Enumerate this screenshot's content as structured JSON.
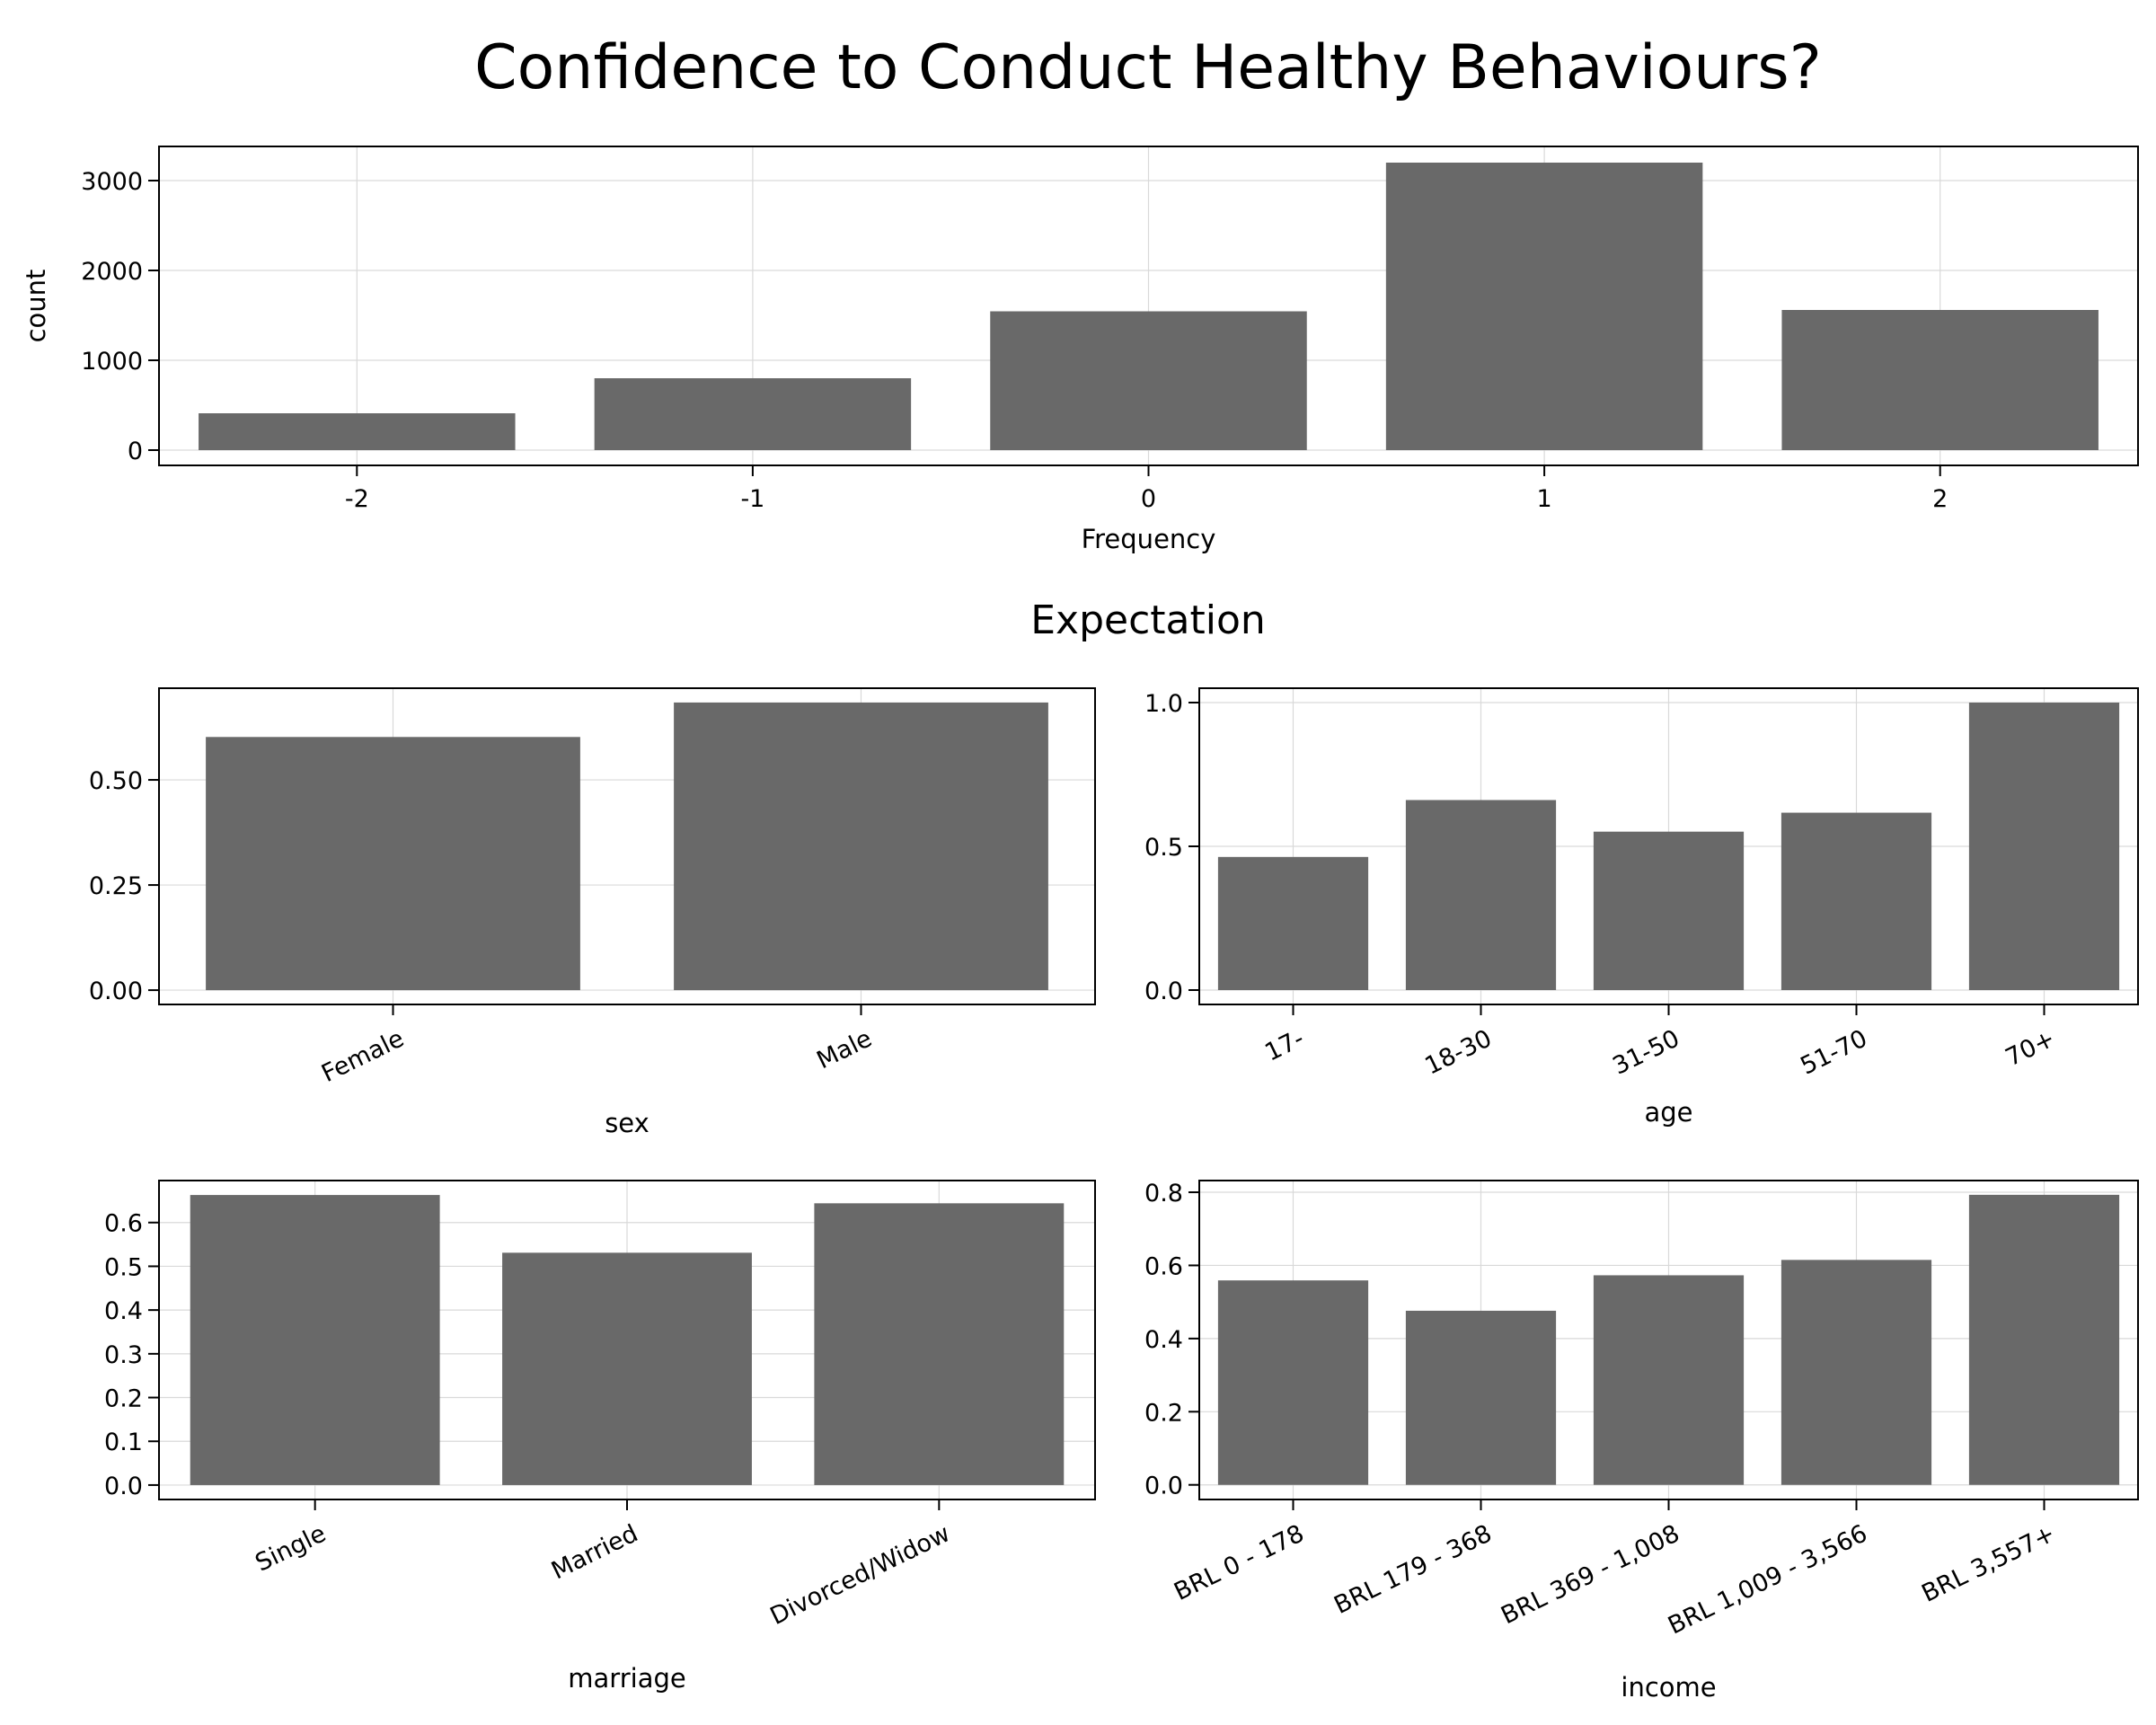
{
  "title": "Confidence to Conduct Healthy Behaviours?",
  "section_title": "Expectation",
  "bar_color": "#666666",
  "chart_data": [
    {
      "type": "bar",
      "name": "frequency",
      "categories": [
        "-2",
        "-1",
        "0",
        "1",
        "2"
      ],
      "values": [
        410,
        800,
        1545,
        3200,
        1560
      ],
      "xlabel": "Frequency",
      "ylabel": "count",
      "ylim": [
        -170,
        3380
      ],
      "yticks": [
        0,
        1000,
        2000,
        3000
      ],
      "ytick_labels": [
        "0",
        "1000",
        "2000",
        "3000"
      ],
      "grid": true,
      "rotate_xticks": false
    },
    {
      "type": "bar",
      "name": "sex",
      "categories": [
        "Female",
        "Male"
      ],
      "values": [
        0.602,
        0.684
      ],
      "xlabel": "sex",
      "ylabel": "",
      "ylim": [
        -0.034,
        0.718
      ],
      "yticks": [
        0,
        0.25,
        0.5
      ],
      "ytick_labels": [
        "0.00",
        "0.25",
        "0.50"
      ],
      "grid": true,
      "rotate_xticks": true
    },
    {
      "type": "bar",
      "name": "age",
      "categories": [
        "17-",
        "18-30",
        "31-50",
        "51-70",
        "70+"
      ],
      "values": [
        0.463,
        0.661,
        0.551,
        0.617,
        1.0
      ],
      "xlabel": "age",
      "ylabel": "",
      "ylim": [
        -0.05,
        1.05
      ],
      "yticks": [
        0,
        0.5,
        1.0
      ],
      "ytick_labels": [
        "0.0",
        "0.5",
        "1.0"
      ],
      "grid": true,
      "rotate_xticks": true
    },
    {
      "type": "bar",
      "name": "marriage",
      "categories": [
        "Single",
        "Married",
        "Divorced/Widow"
      ],
      "values": [
        0.663,
        0.531,
        0.644
      ],
      "xlabel": "marriage",
      "ylabel": "",
      "ylim": [
        -0.033,
        0.696
      ],
      "yticks": [
        0,
        0.1,
        0.2,
        0.3,
        0.4,
        0.5,
        0.6
      ],
      "ytick_labels": [
        "0.0",
        "0.1",
        "0.2",
        "0.3",
        "0.4",
        "0.5",
        "0.6"
      ],
      "grid": true,
      "rotate_xticks": true
    },
    {
      "type": "bar",
      "name": "income",
      "categories": [
        "BRL 0 - 178",
        "BRL 179 - 368",
        "BRL 369 - 1,008",
        "BRL 1,009 - 3,566",
        "BRL 3,557+"
      ],
      "values": [
        0.559,
        0.476,
        0.573,
        0.615,
        0.793
      ],
      "xlabel": "income",
      "ylabel": "",
      "ylim": [
        -0.04,
        0.832
      ],
      "yticks": [
        0,
        0.2,
        0.4,
        0.6,
        0.8
      ],
      "ytick_labels": [
        "0.0",
        "0.2",
        "0.4",
        "0.6",
        "0.8"
      ],
      "grid": true,
      "rotate_xticks": true
    }
  ]
}
